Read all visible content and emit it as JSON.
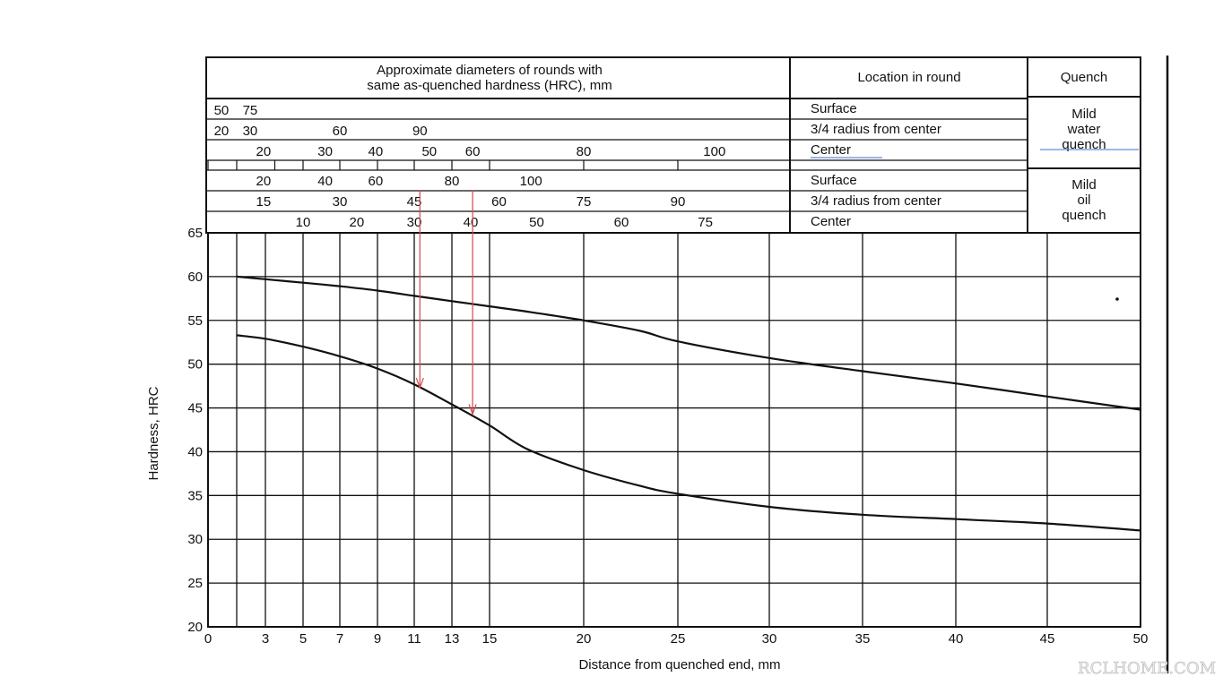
{
  "header": {
    "diameters_line1": "Approximate diameters of rounds with",
    "diameters_line2": "same as-quenched hardness (HRC), mm",
    "location_title": "Location in round",
    "quench_title": "Quench",
    "water_quench": [
      "Mild",
      "water",
      "quench"
    ],
    "oil_quench": [
      "Mild",
      "oil",
      "quench"
    ],
    "rows": [
      {
        "location": "Surface",
        "labels": [
          {
            "t": "50",
            "d": 0.7
          },
          {
            "t": "75",
            "d": 2.2
          }
        ]
      },
      {
        "location": "3/4 radius from center",
        "labels": [
          {
            "t": "20",
            "d": 0.7
          },
          {
            "t": "30",
            "d": 2.2
          },
          {
            "t": "60",
            "d": 7.0
          },
          {
            "t": "90",
            "d": 11.3
          }
        ]
      },
      {
        "location": "Center",
        "labels": [
          {
            "t": "20",
            "d": 2.9
          },
          {
            "t": "30",
            "d": 6.2
          },
          {
            "t": "40",
            "d": 8.9
          },
          {
            "t": "50",
            "d": 11.8
          },
          {
            "t": "60",
            "d": 14.1
          },
          {
            "t": "80",
            "d": 20.0
          },
          {
            "t": "100",
            "d": 27.0
          }
        ]
      },
      {
        "location": "Surface",
        "labels": [
          {
            "t": "20",
            "d": 2.9
          },
          {
            "t": "40",
            "d": 6.2
          },
          {
            "t": "60",
            "d": 8.9
          },
          {
            "t": "80",
            "d": 13.0
          },
          {
            "t": "100",
            "d": 17.2
          }
        ]
      },
      {
        "location": "3/4 radius from center",
        "labels": [
          {
            "t": "15",
            "d": 2.9
          },
          {
            "t": "30",
            "d": 7.0
          },
          {
            "t": "45",
            "d": 11.0
          },
          {
            "t": "60",
            "d": 15.5
          },
          {
            "t": "75",
            "d": 20.0
          },
          {
            "t": "90",
            "d": 25.0
          }
        ]
      },
      {
        "location": "Center",
        "labels": [
          {
            "t": "10",
            "d": 5.0
          },
          {
            "t": "20",
            "d": 7.9
          },
          {
            "t": "30",
            "d": 11.0
          },
          {
            "t": "40",
            "d": 14.0
          },
          {
            "t": "50",
            "d": 17.5
          },
          {
            "t": "60",
            "d": 22.0
          },
          {
            "t": "75",
            "d": 26.5
          }
        ]
      }
    ],
    "scale_ticks": [
      0.0,
      1.5,
      3.5,
      5.0,
      7.0,
      9.0,
      11.0,
      13.0,
      15.0,
      20.0,
      25.0
    ]
  },
  "chart_data": {
    "type": "line",
    "title": "",
    "xlabel": "Distance from quenched end, mm",
    "ylabel": "Hardness, HRC",
    "xlim": [
      0,
      50
    ],
    "ylim": [
      20,
      65
    ],
    "x_ticks": [
      0,
      3,
      5,
      7,
      9,
      11,
      13,
      15,
      20,
      25,
      30,
      35,
      40,
      45,
      50
    ],
    "y_ticks": [
      20,
      25,
      30,
      35,
      40,
      45,
      50,
      55,
      60,
      65
    ],
    "x_gridlines": [
      1.5,
      3,
      5,
      7,
      9,
      11,
      13,
      15,
      20,
      25,
      30,
      35,
      40,
      45,
      50
    ],
    "grid": true,
    "series": [
      {
        "x": [
          1.5,
          3,
          5,
          7,
          9,
          11,
          13,
          15,
          17,
          20,
          23,
          25,
          30,
          35,
          40,
          45,
          50
        ],
        "values": [
          60.0,
          59.7,
          59.3,
          58.9,
          58.4,
          57.8,
          57.2,
          56.6,
          56.0,
          55.0,
          53.8,
          52.6,
          50.7,
          49.2,
          47.8,
          46.3,
          44.8
        ]
      },
      {
        "x": [
          1.5,
          3,
          5,
          7,
          9,
          11,
          13,
          15,
          17,
          20,
          23,
          25,
          30,
          35,
          40,
          45,
          50
        ],
        "values": [
          53.3,
          52.9,
          52.0,
          50.9,
          49.5,
          47.7,
          45.4,
          43.0,
          40.3,
          37.9,
          36.1,
          35.2,
          33.7,
          32.8,
          32.3,
          31.8,
          31.0
        ]
      }
    ],
    "annotations": [
      {
        "type": "arrow",
        "x": 11.3,
        "from_y": 69.9,
        "to_y": 47.3,
        "color": "#d24a4a"
      },
      {
        "type": "arrow",
        "x": 14.1,
        "from_y": 69.9,
        "to_y": 44.3,
        "color": "#d24a4a"
      }
    ]
  },
  "watermark": "RCLHOME.COM"
}
